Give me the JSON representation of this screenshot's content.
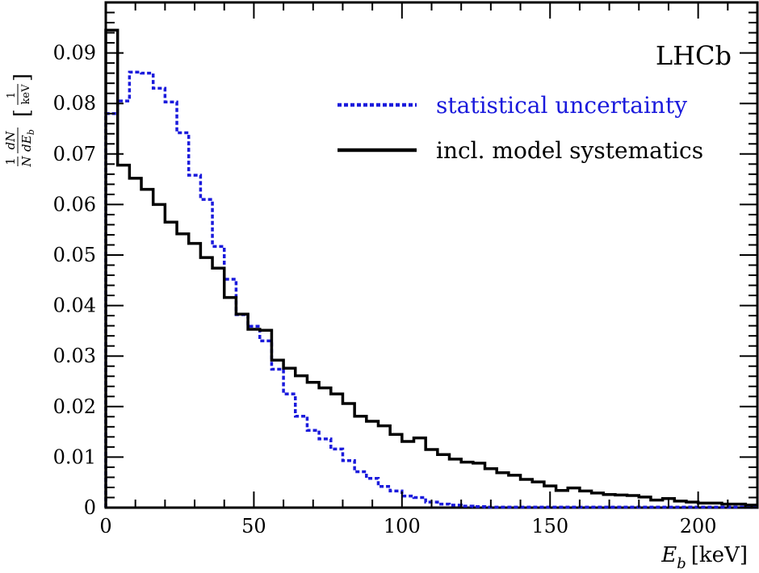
{
  "chart_data": {
    "type": "line",
    "title": "",
    "experiment_label": "LHCb",
    "xlabel": {
      "symbol": "E",
      "subscript": "b",
      "unit": "[keV]"
    },
    "ylabel": {
      "prefix_num": "1",
      "prefix_den": "N",
      "deriv_num": "dN",
      "deriv_den_text": "dE",
      "deriv_den_sub": "b",
      "unit_num": "1",
      "unit_den": "keV"
    },
    "xlim": [
      0,
      220
    ],
    "ylim": [
      0,
      0.1
    ],
    "x_ticks": [
      0,
      50,
      100,
      150,
      200
    ],
    "x_tick_labels": [
      "0",
      "50",
      "100",
      "150",
      "200"
    ],
    "y_ticks": [
      0,
      0.01,
      0.02,
      0.03,
      0.04,
      0.05,
      0.06,
      0.07,
      0.08,
      0.09
    ],
    "y_tick_labels": [
      "0",
      "0.01",
      "0.02",
      "0.03",
      "0.04",
      "0.05",
      "0.06",
      "0.07",
      "0.08",
      "0.09"
    ],
    "grid": false,
    "legend_position": "top-right",
    "bin_width": 4,
    "series": [
      {
        "name": "statistical uncertainty",
        "color": "#1a1adc",
        "style": "dotted",
        "values": [
          0.0805,
          0.0805,
          0.0862,
          0.086,
          0.083,
          0.0803,
          0.0742,
          0.0658,
          0.061,
          0.0517,
          0.0452,
          0.0382,
          0.0359,
          0.033,
          0.0274,
          0.0225,
          0.0181,
          0.0153,
          0.0136,
          0.0116,
          0.0093,
          0.0071,
          0.0058,
          0.0042,
          0.0033,
          0.0023,
          0.002,
          0.0011,
          0.0007,
          0.0005,
          0.0003,
          0.0002,
          0.0001,
          0.0001,
          0.0001,
          0.0001,
          0.0001,
          0.0001,
          0.0001,
          0.0001,
          0.0001,
          0.0001,
          0.0001,
          0.0001,
          0.0001,
          0.0001,
          0.0001,
          0.0001,
          0.0001,
          0.0001,
          0.0001,
          0.0001,
          0.0001,
          0.0001,
          0.0001
        ]
      },
      {
        "name": "incl. model systematics",
        "color": "#000000",
        "style": "solid",
        "values": [
          0.068,
          0.0678,
          0.0652,
          0.063,
          0.06,
          0.0565,
          0.0542,
          0.0523,
          0.0495,
          0.0474,
          0.0416,
          0.0383,
          0.0353,
          0.0351,
          0.0292,
          0.0276,
          0.0261,
          0.0248,
          0.0237,
          0.0225,
          0.0206,
          0.0181,
          0.0171,
          0.0162,
          0.0145,
          0.0131,
          0.0138,
          0.0115,
          0.0105,
          0.0096,
          0.009,
          0.0088,
          0.0077,
          0.0069,
          0.0064,
          0.0056,
          0.0051,
          0.0043,
          0.0034,
          0.0039,
          0.0033,
          0.0029,
          0.0026,
          0.0025,
          0.0024,
          0.0021,
          0.0015,
          0.0018,
          0.0013,
          0.0011,
          0.0009,
          0.0009,
          0.0007,
          0.0007,
          0.0005
        ]
      }
    ],
    "first_bin_peak": {
      "x_range": [
        0,
        4
      ],
      "values": [
        0.0945,
        0.078
      ]
    }
  }
}
